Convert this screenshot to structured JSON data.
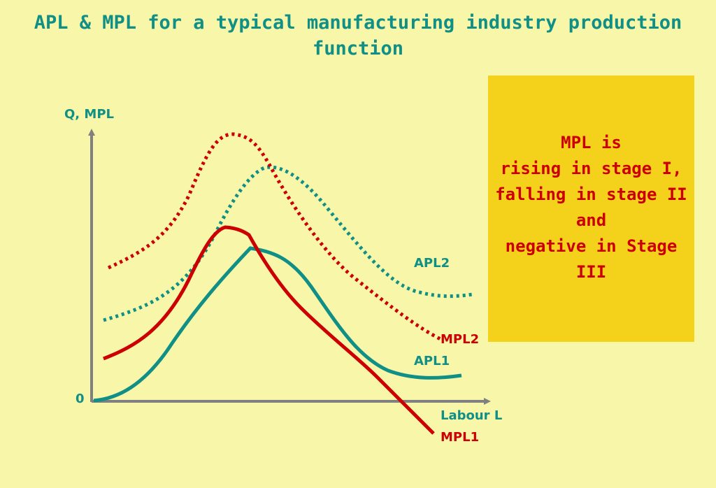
{
  "title": {
    "line1": "APL & MPL for a typical manufacturing industry production",
    "line2": "function"
  },
  "axes": {
    "y_label": "Q, MPL",
    "x_label": "Labour L",
    "origin_label": "0"
  },
  "curves": {
    "apl2": "APL2",
    "mpl2": "MPL2",
    "apl1": "APL1",
    "mpl1": "MPL1"
  },
  "note": {
    "lines": [
      "MPL is",
      "rising in stage I,",
      "falling in stage II",
      "and",
      "negative in Stage",
      "III"
    ]
  },
  "colors": {
    "background": "#f8f6a8",
    "teal": "#0f8f86",
    "red": "#cc0000",
    "axis": "#808080",
    "note_box": "#f4d21c"
  }
}
